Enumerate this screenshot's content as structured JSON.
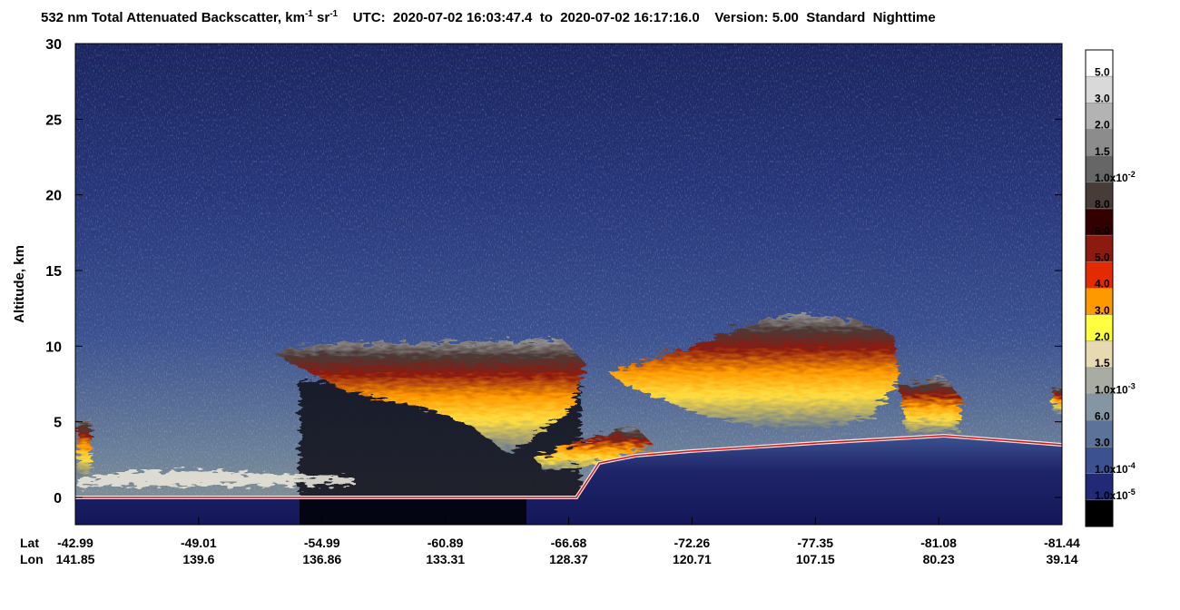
{
  "chart_data": {
    "type": "curtain",
    "title_segments": [
      {
        "text": "532 nm Total Attenuated Backscatter, km"
      },
      {
        "text": "-1",
        "sup": true
      },
      {
        "text": " sr"
      },
      {
        "text": "-1",
        "sup": true
      },
      {
        "text": "    UTC:  2020-07-02 16:03:47.4  to  2020-07-02 16:17:16.0    Version: 5.00  Standard  Nighttime"
      }
    ],
    "y_label": "Altitude, km",
    "ylim": [
      -1.8,
      30
    ],
    "yticks": [
      0,
      5,
      10,
      15,
      20,
      25,
      30
    ],
    "x_row_labels": [
      "Lat",
      "Lon"
    ],
    "lat": [
      -42.99,
      -49.01,
      -54.99,
      -60.89,
      -66.68,
      -72.26,
      -77.35,
      -81.08,
      -81.44
    ],
    "lon": [
      141.85,
      139.6,
      136.86,
      133.31,
      128.37,
      120.71,
      107.15,
      80.23,
      39.14
    ],
    "colorbar": {
      "colors": [
        "#ffffff",
        "#d9d9d9",
        "#b3b3b3",
        "#8c8c8c",
        "#666666",
        "#473c38",
        "#330000",
        "#8c1a10",
        "#e52a00",
        "#ff9900",
        "#ffff40",
        "#e8dab0",
        "#a9aca2",
        "#8495a4",
        "#5c7298",
        "#3c5290",
        "#222a78",
        "#000000"
      ],
      "labels": [
        {
          "text": "5.0"
        },
        {
          "text": "3.0"
        },
        {
          "text": "2.0"
        },
        {
          "text": "1.5"
        },
        {
          "text": "1.0x10",
          "sup": "-2"
        },
        {
          "text": "8.0"
        },
        {
          "text": "6.0"
        },
        {
          "text": "5.0"
        },
        {
          "text": "4.0"
        },
        {
          "text": "3.0"
        },
        {
          "text": "2.0"
        },
        {
          "text": "1.5"
        },
        {
          "text": "1.0x10",
          "sup": "-3"
        },
        {
          "text": "6.0"
        },
        {
          "text": "3.0"
        },
        {
          "text": "1.0x10",
          "sup": "-4"
        },
        {
          "text": "1.0x10",
          "sup": "-5"
        }
      ]
    }
  }
}
